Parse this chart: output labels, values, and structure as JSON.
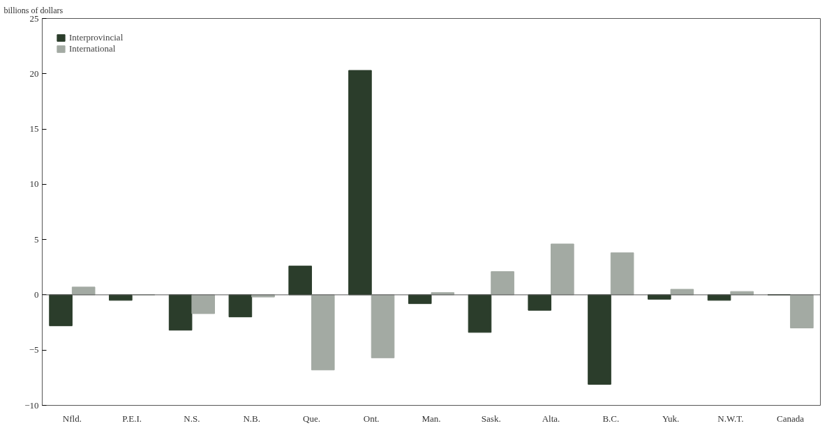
{
  "chart_data": {
    "type": "bar",
    "ylabel": "billions of dollars",
    "categories": [
      "Nfld.",
      "P.E.I.",
      "N.S.",
      "N.B.",
      "Que.",
      "Ont.",
      "Man.",
      "Sask.",
      "Alta.",
      "B.C.",
      "Yuk.",
      "N.W.T.",
      "Canada"
    ],
    "series": [
      {
        "name": "Interprovincial",
        "color": "#2b3d2b",
        "values": [
          -2.8,
          -0.5,
          -3.2,
          -2.0,
          2.6,
          20.3,
          -0.8,
          -3.4,
          -1.4,
          -8.1,
          -0.4,
          -0.5,
          0
        ]
      },
      {
        "name": "International",
        "color": "#a3aaa3",
        "values": [
          0.7,
          0,
          -1.7,
          -0.2,
          -6.8,
          -5.7,
          0.2,
          2.1,
          4.6,
          3.8,
          0.5,
          0.3,
          -3.0
        ]
      }
    ],
    "ylim": [
      -10,
      25
    ],
    "yticks": [
      -10,
      -5,
      0,
      5,
      10,
      15,
      20,
      25
    ],
    "ref_lines": [
      {
        "axis": "y",
        "value": 0,
        "color": "#555555"
      }
    ],
    "grid": false,
    "legend": "top left"
  }
}
